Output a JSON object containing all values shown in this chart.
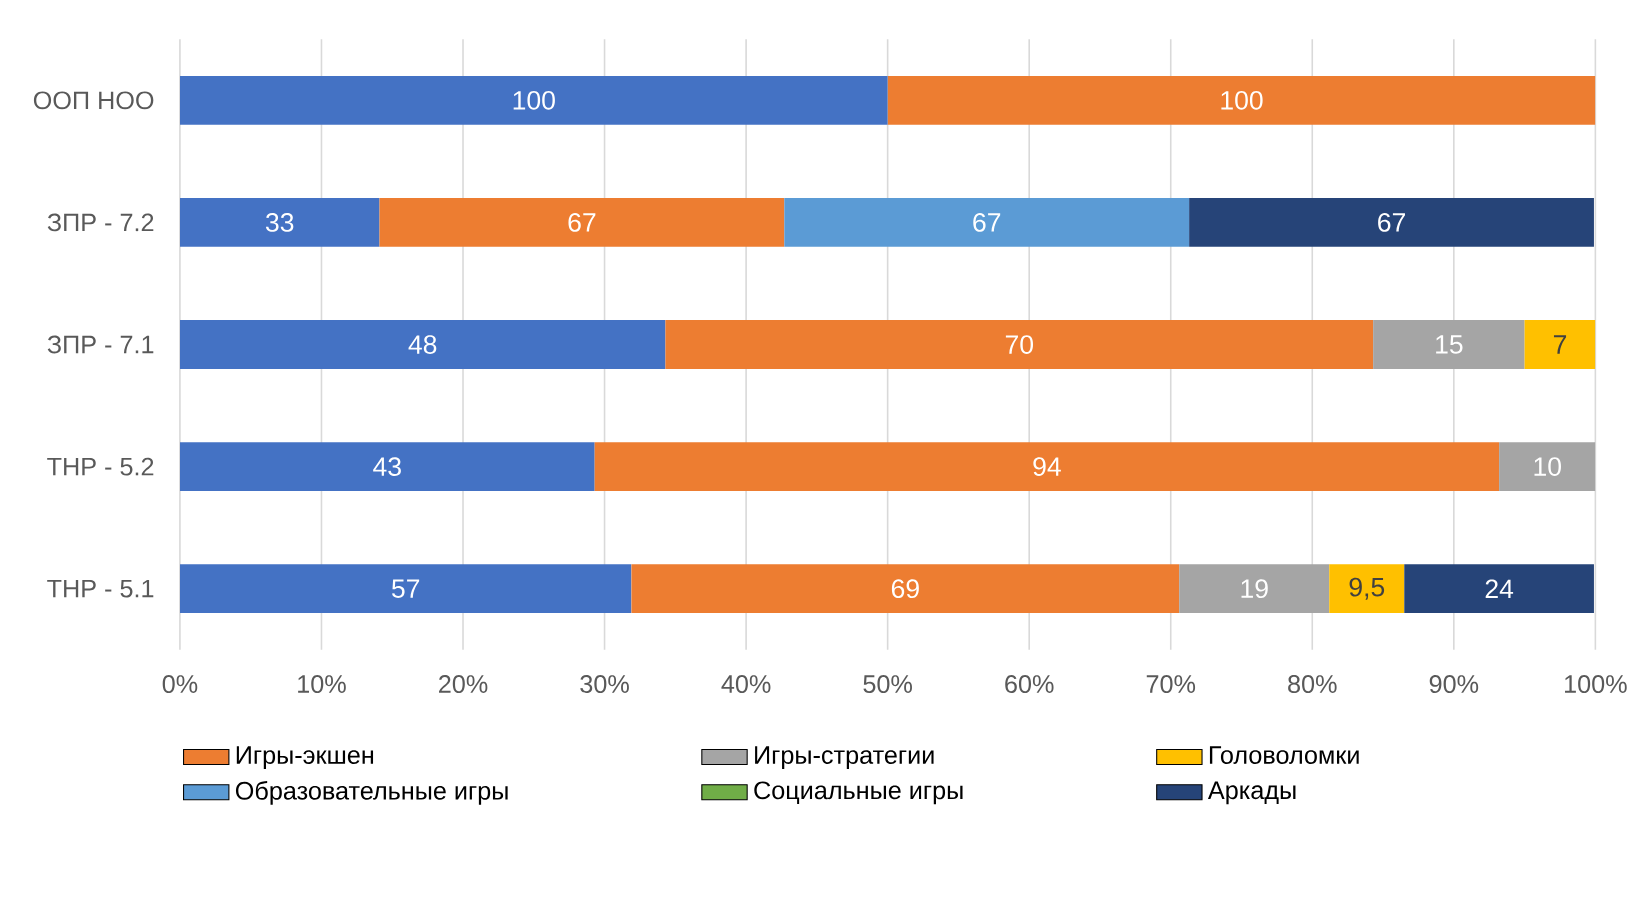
{
  "chart_data": {
    "type": "bar",
    "orientation": "horizontal",
    "stacked": true,
    "categories": [
      "ООП НОО",
      "ЗПР - 7.2",
      "ЗПР - 7.1",
      "ТНР - 5.2",
      "ТНР - 5.1"
    ],
    "series": [
      {
        "color": "#4472c4",
        "values": [
          50,
          14.1,
          34.3,
          29.3,
          31.9
        ]
      },
      {
        "name": "Игры-экшен",
        "color": "#ed7d31",
        "values": [
          50,
          28.6,
          50,
          63.9,
          38.7
        ]
      },
      {
        "name": "Игры-стратегии",
        "color": "#a5a5a5",
        "values": [
          null,
          null,
          10.7,
          6.8,
          10.6
        ]
      },
      {
        "name": "Головоломки",
        "color": "#ffc000",
        "values": [
          null,
          null,
          5,
          null,
          5.3
        ]
      },
      {
        "name": "Образовательные игры",
        "color": "#5b9bd5",
        "values": [
          null,
          28.6,
          null,
          null,
          null
        ]
      },
      {
        "name": "Социальные игры",
        "color": "#70ad47",
        "values": [
          null,
          null,
          null,
          null,
          null
        ]
      },
      {
        "name": "Аркады",
        "color": "#264478",
        "values": [
          null,
          28.6,
          null,
          null,
          13.4
        ]
      }
    ],
    "annotations": [
      "100",
      "100",
      "33",
      "67",
      "67",
      "67",
      "48",
      "70",
      "15",
      "7",
      "43",
      "94",
      "10",
      "57",
      "69",
      "19",
      "9,5",
      "24"
    ],
    "xlim": [
      0,
      100
    ],
    "xticks": [
      {
        "value": 0,
        "label": "0%"
      },
      {
        "value": 10,
        "label": "10%"
      },
      {
        "value": 20,
        "label": "20%"
      },
      {
        "value": 30,
        "label": "30%"
      },
      {
        "value": 40,
        "label": "40%"
      },
      {
        "value": 50,
        "label": "50%"
      },
      {
        "value": 60,
        "label": "60%"
      },
      {
        "value": 70,
        "label": "70%"
      },
      {
        "value": 80,
        "label": "80%"
      },
      {
        "value": 90,
        "label": "90%"
      },
      {
        "value": 100,
        "label": "100%"
      }
    ],
    "grid": "x",
    "legend": "bottom"
  }
}
